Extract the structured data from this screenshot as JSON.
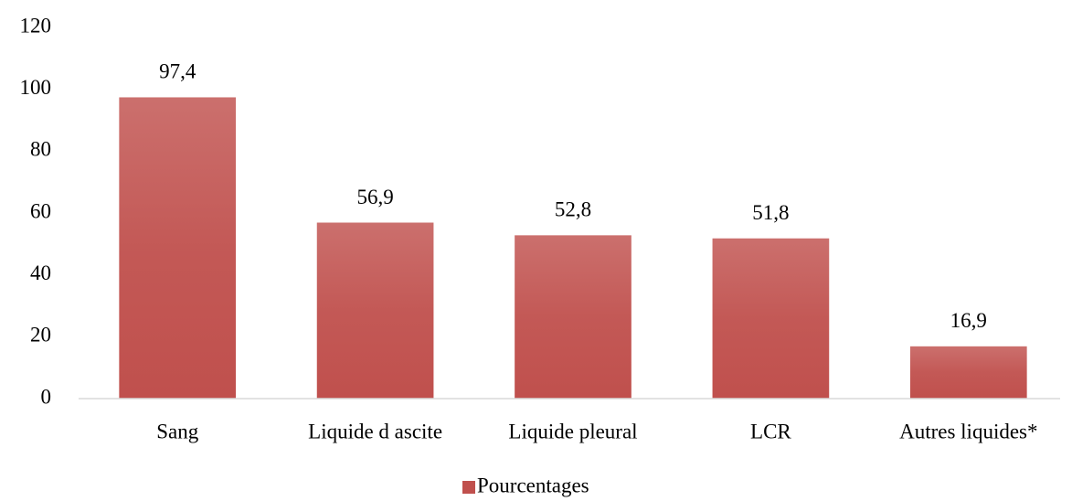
{
  "chart_data": {
    "type": "bar",
    "categories": [
      "Sang",
      "Liquide d ascite",
      "Liquide pleural",
      "LCR",
      "Autres liquides*"
    ],
    "series": [
      {
        "name": "Pourcentages",
        "color": "#c0504d",
        "values": [
          97.4,
          56.9,
          52.8,
          51.8,
          16.9
        ],
        "value_labels": [
          "97,4",
          "56,9",
          "52,8",
          "51,8",
          "16,9"
        ]
      }
    ],
    "ylim": [
      0,
      120
    ],
    "yticks": [
      0,
      20,
      40,
      60,
      80,
      100,
      120
    ],
    "grid": false,
    "legend": "bottom"
  }
}
